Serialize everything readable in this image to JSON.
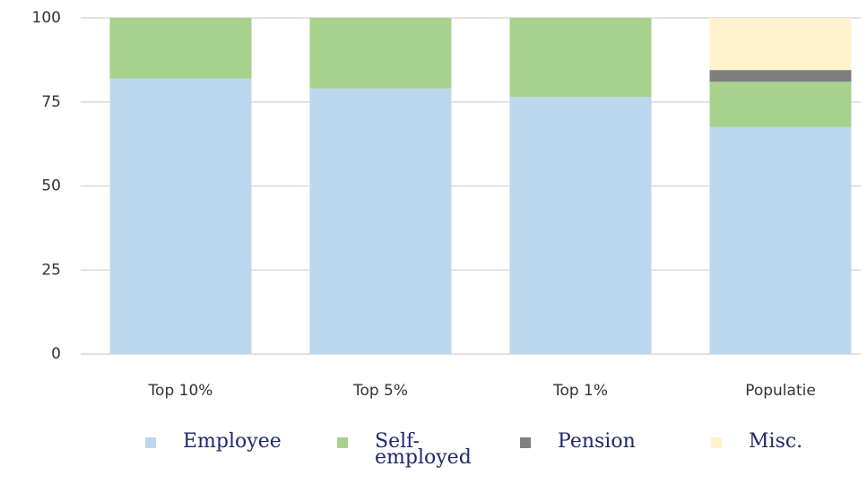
{
  "chart_data": {
    "type": "stacked_bar",
    "categories": [
      "Top 10%",
      "Top 5%",
      "Top 1%",
      "Populatie"
    ],
    "series": [
      {
        "name": "Employee",
        "color": "#bdd7ee",
        "values": [
          82,
          79,
          76.5,
          67.5
        ]
      },
      {
        "name": "Self-employed",
        "color": "#a9d18e",
        "values": [
          18,
          21,
          23.5,
          13.5
        ]
      },
      {
        "name": "Pension",
        "color": "#7f7f7f",
        "values": [
          0,
          0,
          0,
          3.5
        ]
      },
      {
        "name": "Misc.",
        "color": "#fff2cc",
        "values": [
          0,
          0,
          0,
          15.5
        ]
      }
    ],
    "ylim": [
      0,
      100
    ],
    "yticks": [
      0,
      25,
      50,
      75,
      100
    ],
    "grid": true,
    "legend": "bottom"
  }
}
